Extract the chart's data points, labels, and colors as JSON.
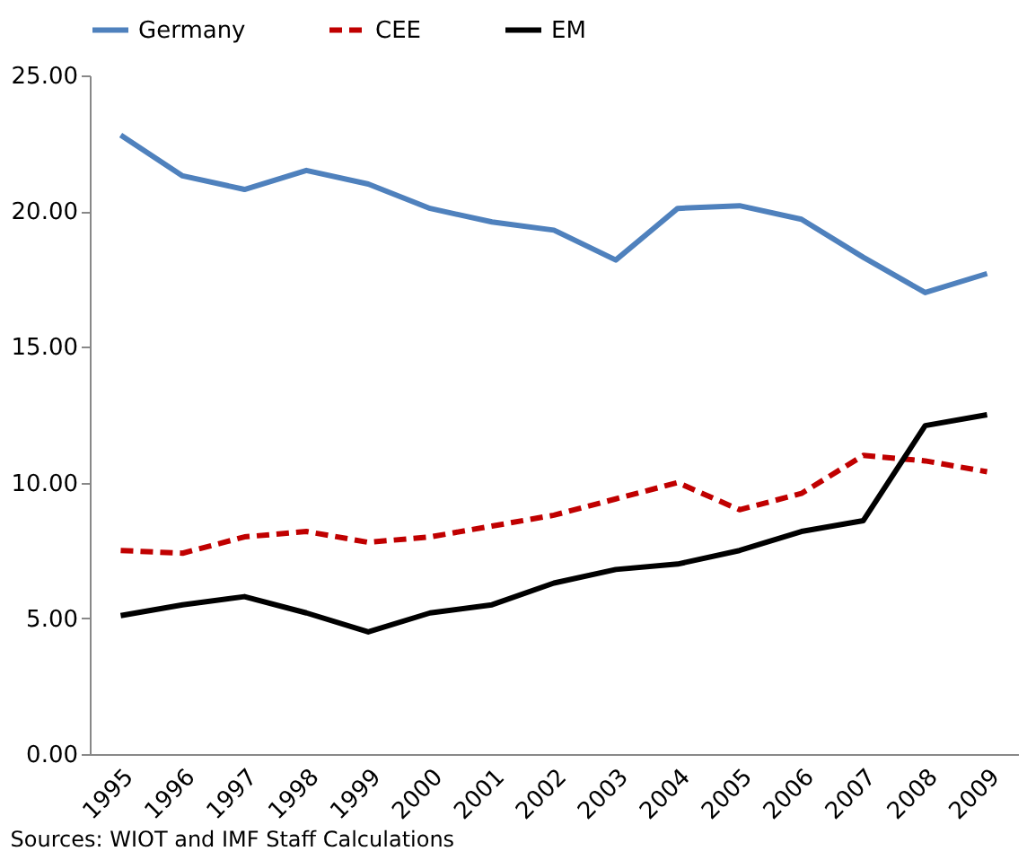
{
  "chart_data": {
    "type": "line",
    "categories": [
      "1995",
      "1996",
      "1997",
      "1998",
      "1999",
      "2000",
      "2001",
      "2002",
      "2003",
      "2004",
      "2005",
      "2006",
      "2007",
      "2008",
      "2009"
    ],
    "series": [
      {
        "name": "Germany",
        "color": "#4f81bd",
        "line_style": "solid",
        "values": [
          22.8,
          21.3,
          20.8,
          21.5,
          21.0,
          20.1,
          19.6,
          19.3,
          18.2,
          20.1,
          20.2,
          19.7,
          18.3,
          17.0,
          17.7
        ]
      },
      {
        "name": "CEE",
        "color": "#c00000",
        "line_style": "dashed",
        "values": [
          7.5,
          7.4,
          8.0,
          8.2,
          7.8,
          8.0,
          8.4,
          8.8,
          9.4,
          10.0,
          9.0,
          9.6,
          11.0,
          10.8,
          10.4
        ]
      },
      {
        "name": "EM",
        "color": "#000000",
        "line_style": "solid",
        "values": [
          5.1,
          5.5,
          5.8,
          5.2,
          4.5,
          5.2,
          5.5,
          6.3,
          6.8,
          7.0,
          7.5,
          8.2,
          8.6,
          12.1,
          12.5
        ]
      }
    ],
    "ylim": [
      0,
      25
    ],
    "yticks": [
      {
        "value": 0,
        "label": "0.00"
      },
      {
        "value": 5,
        "label": "5.00"
      },
      {
        "value": 10,
        "label": "10.00"
      },
      {
        "value": 15,
        "label": "15.00"
      },
      {
        "value": 20,
        "label": "20.00"
      },
      {
        "value": 25,
        "label": "25.00"
      }
    ],
    "grid": false,
    "legend": "top",
    "marker": "none",
    "annotations": [
      "Sources: WIOT and IMF Staff Calculations"
    ]
  }
}
